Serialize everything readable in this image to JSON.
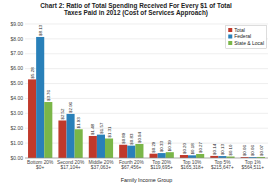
{
  "chart_data": {
    "type": "bar",
    "title": "Chart 2: Ratio of Total Spending Received For Every $1 of Total\nTaxes Paid in 2012 (Cost of Services Approach)",
    "xlabel": "Family Income Group",
    "categories": [
      "Bottom 20%\n$0+",
      "Second 20%\n$17,104+",
      "Middle 20%\n$37,063+",
      "Fourth 20%\n$67,456+",
      "Top 20%\n$119,695+",
      "Top 10%\n$165,318+",
      "Top 5%\n$215,647+",
      "Top 1%\n$564,511+"
    ],
    "series": [
      {
        "name": "Total",
        "color": "#c0392b",
        "values": [
          5.28,
          2.52,
          1.48,
          0.89,
          0.29,
          0.2,
          0.14,
          0.06
        ],
        "value_labels": [
          "$5.28",
          "$2.52",
          "$1.48",
          "$0.89",
          "$0.29",
          "$0.20",
          "$0.14",
          "$0.06"
        ]
      },
      {
        "name": "Federal",
        "color": "#2980b9",
        "values": [
          8.13,
          2.96,
          1.57,
          0.83,
          0.33,
          0.18,
          0.13,
          0.06
        ],
        "value_labels": [
          "$8.13",
          "$2.96",
          "$1.57",
          "$0.83",
          "$0.33",
          "$0.18",
          "$0.13",
          "$0.06"
        ]
      },
      {
        "name": "State & Local",
        "color": "#7ab648",
        "values": [
          3.76,
          1.93,
          1.31,
          0.94,
          0.39,
          0.27,
          0.1,
          0.07
        ],
        "value_labels": [
          "$3.76",
          "$1.93",
          "$1.31",
          "$0.94",
          "$0.39",
          "$0.27",
          "$0.10",
          "$0.07"
        ]
      }
    ],
    "ylim": [
      0,
      9.0
    ],
    "yticks": [
      {
        "value": 0.0,
        "label": "$0.00"
      },
      {
        "value": 1.0,
        "label": "$1.00"
      },
      {
        "value": 2.0,
        "label": "$2.00"
      },
      {
        "value": 3.0,
        "label": "$3.00"
      },
      {
        "value": 4.0,
        "label": "$4.00"
      },
      {
        "value": 5.0,
        "label": "$5.00"
      },
      {
        "value": 6.0,
        "label": "$6.00"
      },
      {
        "value": 7.0,
        "label": "$7.00"
      },
      {
        "value": 8.0,
        "label": "$8.00"
      },
      {
        "value": 9.0,
        "label": "$9.00"
      }
    ],
    "grid": true,
    "legend": "upper right",
    "data_labels": true
  }
}
